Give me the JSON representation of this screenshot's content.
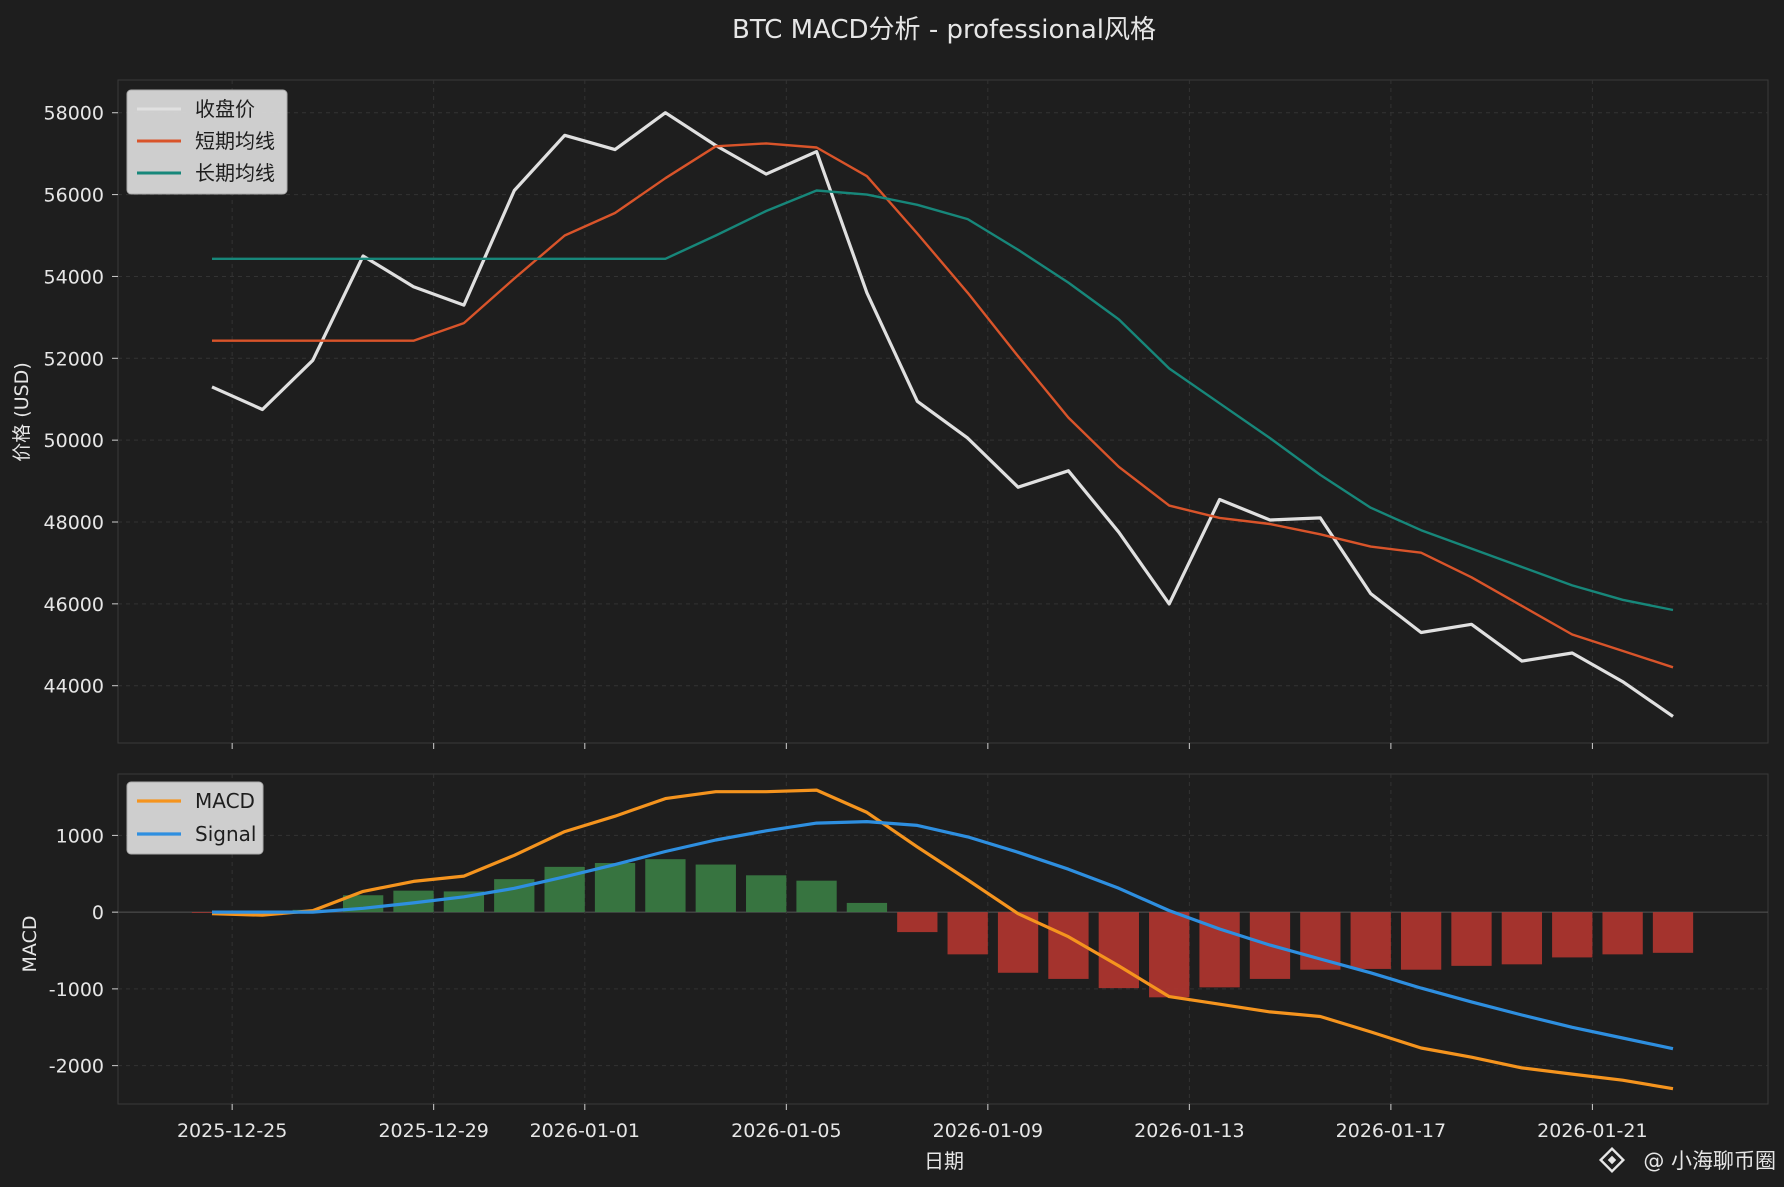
{
  "chart_data": [
    {
      "type": "line",
      "title": "BTC MACD分析 - professional风格",
      "ylabel": "价格 (USD)",
      "ylim": [
        42600,
        58800
      ],
      "yticks": [
        44000,
        46000,
        48000,
        50000,
        52000,
        54000,
        56000,
        58000
      ],
      "grid": true,
      "legend_position": "top-left",
      "series": [
        {
          "name": "收盘价",
          "color": "#e0e0e0",
          "values": [
            51300,
            50750,
            51950,
            54500,
            53750,
            53300,
            56100,
            57450,
            57100,
            58000,
            57200,
            56500,
            57050,
            53600,
            50950,
            50050,
            48850,
            49250,
            47750,
            46000,
            48550,
            48050,
            48100,
            46250,
            45300,
            45500,
            44600,
            44800,
            44100,
            43250
          ]
        },
        {
          "name": "短期均线",
          "color": "#d9542a",
          "values": [
            52430,
            52430,
            52430,
            52430,
            52430,
            52860,
            53950,
            55000,
            55550,
            56400,
            57180,
            57250,
            57150,
            56450,
            55050,
            53600,
            52050,
            50550,
            49350,
            48400,
            48100,
            47950,
            47700,
            47400,
            47250,
            46650,
            45950,
            45250,
            44850,
            44450
          ]
        },
        {
          "name": "长期均线",
          "color": "#17877a",
          "values": [
            54430,
            54430,
            54430,
            54430,
            54430,
            54430,
            54430,
            54430,
            54430,
            54430,
            55000,
            55600,
            56100,
            56000,
            55750,
            55400,
            54650,
            53850,
            52950,
            51750,
            50900,
            50050,
            49150,
            48350,
            47800,
            47350,
            46900,
            46450,
            46100,
            45850
          ]
        }
      ]
    },
    {
      "type": "bar",
      "ylabel": "MACD",
      "xlabel": "日期",
      "ylim": [
        -2500,
        1800
      ],
      "yticks": [
        -2000,
        -1000,
        0,
        1000
      ],
      "grid": true,
      "legend_position": "top-left",
      "x_tick_labels": [
        "2025-12-25",
        "2025-12-29",
        "2026-01-01",
        "2026-01-05",
        "2026-01-09",
        "2026-01-13",
        "2026-01-17",
        "2026-01-21"
      ],
      "x_tick_index": [
        0.4,
        4.4,
        7.4,
        11.4,
        15.4,
        19.4,
        23.4,
        27.4
      ],
      "histogram": {
        "positive_color": "#3a7d44",
        "negative_color": "#b3352f",
        "values": [
          -10,
          -40,
          30,
          220,
          280,
          270,
          430,
          590,
          640,
          690,
          620,
          480,
          410,
          120,
          -260,
          -550,
          -790,
          -870,
          -990,
          -1110,
          -980,
          -870,
          -750,
          -740,
          -750,
          -700,
          -680,
          -590,
          -550,
          -530
        ]
      },
      "series": [
        {
          "name": "MACD",
          "color": "#f5941e",
          "values": [
            -20,
            -40,
            20,
            270,
            400,
            470,
            740,
            1050,
            1250,
            1480,
            1570,
            1570,
            1590,
            1300,
            850,
            420,
            -20,
            -320,
            -700,
            -1100,
            -1200,
            -1300,
            -1360,
            -1560,
            -1770,
            -1890,
            -2030,
            -2110,
            -2190,
            -2300
          ]
        },
        {
          "name": "Signal",
          "color": "#2e8fe0",
          "values": [
            0,
            0,
            0,
            50,
            120,
            200,
            310,
            460,
            620,
            790,
            940,
            1060,
            1160,
            1180,
            1130,
            980,
            780,
            560,
            310,
            20,
            -220,
            -430,
            -610,
            -790,
            -990,
            -1170,
            -1340,
            -1500,
            -1640,
            -1780
          ]
        }
      ]
    }
  ],
  "watermark": "@ 小海聊币圈"
}
